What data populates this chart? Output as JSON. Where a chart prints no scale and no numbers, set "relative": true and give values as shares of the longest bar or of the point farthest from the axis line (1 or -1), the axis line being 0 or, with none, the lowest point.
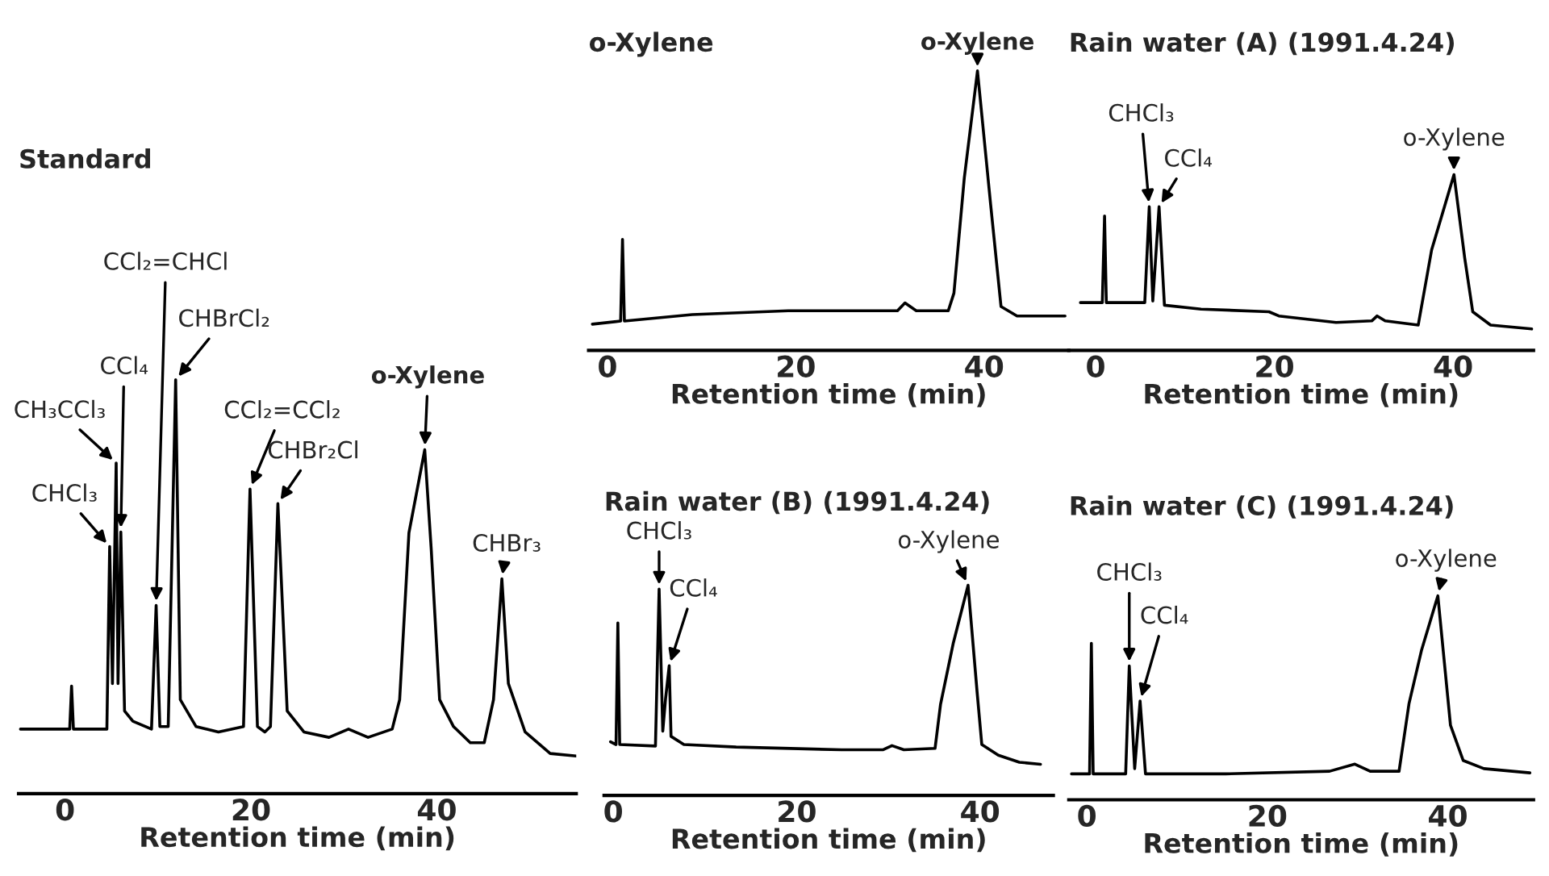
{
  "chart_data": [
    {
      "type": "line",
      "title": "Standard",
      "xlabel": "Retention time (min)",
      "relative": true,
      "color": "#000000",
      "xlim": [
        -5,
        55
      ],
      "xticks": [
        0,
        20,
        40
      ],
      "x": [
        -4.8,
        0.5,
        0.7,
        0.9,
        4.5,
        4.8,
        5.1,
        5.5,
        5.7,
        6.0,
        6.4,
        7.3,
        9.3,
        9.8,
        10.2,
        11.1,
        11.9,
        12.4,
        14.1,
        16.5,
        19.2,
        19.9,
        20.7,
        21.5,
        22.1,
        22.9,
        23.9,
        25.7,
        28.4,
        30.5,
        32.6,
        35.2,
        36.0,
        37.0,
        38.7,
        39.4,
        40.3,
        41.8,
        43.6,
        45.1,
        46.1,
        47.0,
        47.7,
        49.5,
        52.2,
        55.0
      ],
      "values": [
        0.156,
        0.156,
        0.26,
        0.156,
        0.156,
        0.597,
        0.266,
        0.799,
        0.266,
        0.632,
        0.2,
        0.175,
        0.156,
        0.455,
        0.162,
        0.162,
        1.0,
        0.227,
        0.162,
        0.149,
        0.162,
        0.736,
        0.162,
        0.149,
        0.162,
        0.701,
        0.2,
        0.149,
        0.136,
        0.156,
        0.136,
        0.156,
        0.227,
        0.63,
        0.831,
        0.59,
        0.227,
        0.162,
        0.123,
        0.123,
        0.227,
        0.519,
        0.266,
        0.149,
        0.097,
        0.091
      ],
      "annotations": [
        {
          "text": "CHCl₃",
          "x": 4.8,
          "y": 0.597
        },
        {
          "text": "CH₃CCl₃",
          "x": 5.5,
          "y": 0.799
        },
        {
          "text": "CCl₄",
          "x": 6.0,
          "y": 0.632
        },
        {
          "text": "CCl₂=CHCl",
          "x": 9.8,
          "y": 0.455
        },
        {
          "text": "CHBrCl₂",
          "x": 11.9,
          "y": 1.0
        },
        {
          "text": "CCl₂=CCl₂",
          "x": 19.9,
          "y": 0.736
        },
        {
          "text": "CHBr₂Cl",
          "x": 22.9,
          "y": 0.701
        },
        {
          "text": "o-Xylene",
          "x": 38.7,
          "y": 0.831
        },
        {
          "text": "CHBr₃",
          "x": 47.0,
          "y": 0.519
        }
      ]
    },
    {
      "type": "line",
      "title": "o-Xylene",
      "xlabel": "Retention time (min)",
      "relative": true,
      "color": "#000000",
      "xlim": [
        -2,
        49
      ],
      "xticks": [
        0,
        20,
        40
      ],
      "x": [
        -1.6,
        1.4,
        1.6,
        1.8,
        9.0,
        19.2,
        26.0,
        30.8,
        31.6,
        32.8,
        36.2,
        36.8,
        37.9,
        39.3,
        40.7,
        41.8,
        43.5,
        48.6
      ],
      "values": [
        0.094,
        0.105,
        0.397,
        0.105,
        0.128,
        0.142,
        0.142,
        0.142,
        0.17,
        0.142,
        0.142,
        0.205,
        0.617,
        1.0,
        0.521,
        0.157,
        0.123,
        0.123
      ],
      "annotations": [
        {
          "text": "o-Xylene",
          "x": 39.3,
          "y": 1.0
        }
      ]
    },
    {
      "type": "line",
      "title": "Rain water (A) (1991.4.24)",
      "xlabel": "Retention time (min)",
      "relative": true,
      "color": "#000000",
      "xlim": [
        -3,
        49
      ],
      "xticks": [
        0,
        20,
        40
      ],
      "x": [
        -1.7,
        0.75,
        1.0,
        1.2,
        5.5,
        6.0,
        6.4,
        7.1,
        7.7,
        11.8,
        19.4,
        20.5,
        26.9,
        30.9,
        31.5,
        32.4,
        36.1,
        37.6,
        40.1,
        41.3,
        42.2,
        44.2,
        48.8
      ],
      "values": [
        0.272,
        0.272,
        0.765,
        0.272,
        0.272,
        0.817,
        0.281,
        0.817,
        0.257,
        0.235,
        0.22,
        0.196,
        0.159,
        0.168,
        0.196,
        0.168,
        0.144,
        0.572,
        1.0,
        0.526,
        0.22,
        0.144,
        0.122
      ],
      "annotations": [
        {
          "text": "CHCl₃",
          "x": 6.0,
          "y": 0.817
        },
        {
          "text": "CCl₄",
          "x": 7.1,
          "y": 0.817
        },
        {
          "text": "o-Xylene",
          "x": 40.1,
          "y": 1.0
        }
      ]
    },
    {
      "type": "line",
      "title": "Rain water (B) (1991.4.24)",
      "xlabel": "Retention time (min)",
      "relative": true,
      "color": "#000000",
      "xlim": [
        -1,
        48
      ],
      "xticks": [
        0,
        20,
        40
      ],
      "x": [
        -0.3,
        0.3,
        0.5,
        0.7,
        4.6,
        5.0,
        5.4,
        5.7,
        6.1,
        6.3,
        7.7,
        13.4,
        24.9,
        29.4,
        30.4,
        31.7,
        35.1,
        35.7,
        37.1,
        38.7,
        39.7,
        40.2,
        42.0,
        44.3,
        46.6
      ],
      "values": [
        0.255,
        0.242,
        0.821,
        0.242,
        0.235,
        0.982,
        0.306,
        0.459,
        0.617,
        0.281,
        0.242,
        0.23,
        0.217,
        0.217,
        0.237,
        0.217,
        0.224,
        0.434,
        0.727,
        1.0,
        0.485,
        0.242,
        0.191,
        0.158,
        0.148
      ],
      "annotations": [
        {
          "text": "CHCl₃",
          "x": 5.0,
          "y": 0.982
        },
        {
          "text": "CCl₄",
          "x": 6.1,
          "y": 0.617
        },
        {
          "text": "o-Xylene",
          "x": 38.7,
          "y": 1.0
        }
      ]
    },
    {
      "type": "line",
      "title": "Rain water (C) (1991.4.24)",
      "xlabel": "Retention time (min)",
      "relative": true,
      "color": "#000000",
      "xlim": [
        -2,
        49.5
      ],
      "xticks": [
        0,
        20,
        40
      ],
      "x": [
        -1.7,
        0.3,
        0.5,
        0.7,
        4.3,
        4.7,
        5.3,
        5.9,
        6.5,
        15.4,
        26.9,
        29.7,
        31.4,
        34.6,
        35.7,
        37.1,
        38.9,
        40.3,
        41.7,
        44.0,
        49.1
      ],
      "values": [
        0.127,
        0.127,
        0.767,
        0.127,
        0.127,
        0.656,
        0.153,
        0.484,
        0.127,
        0.127,
        0.14,
        0.175,
        0.14,
        0.14,
        0.471,
        0.735,
        1.0,
        0.365,
        0.193,
        0.153,
        0.132
      ],
      "annotations": [
        {
          "text": "CHCl₃",
          "x": 4.7,
          "y": 0.656
        },
        {
          "text": "CCl₄",
          "x": 5.9,
          "y": 0.484
        },
        {
          "text": "o-Xylene",
          "x": 38.9,
          "y": 1.0
        }
      ]
    }
  ]
}
